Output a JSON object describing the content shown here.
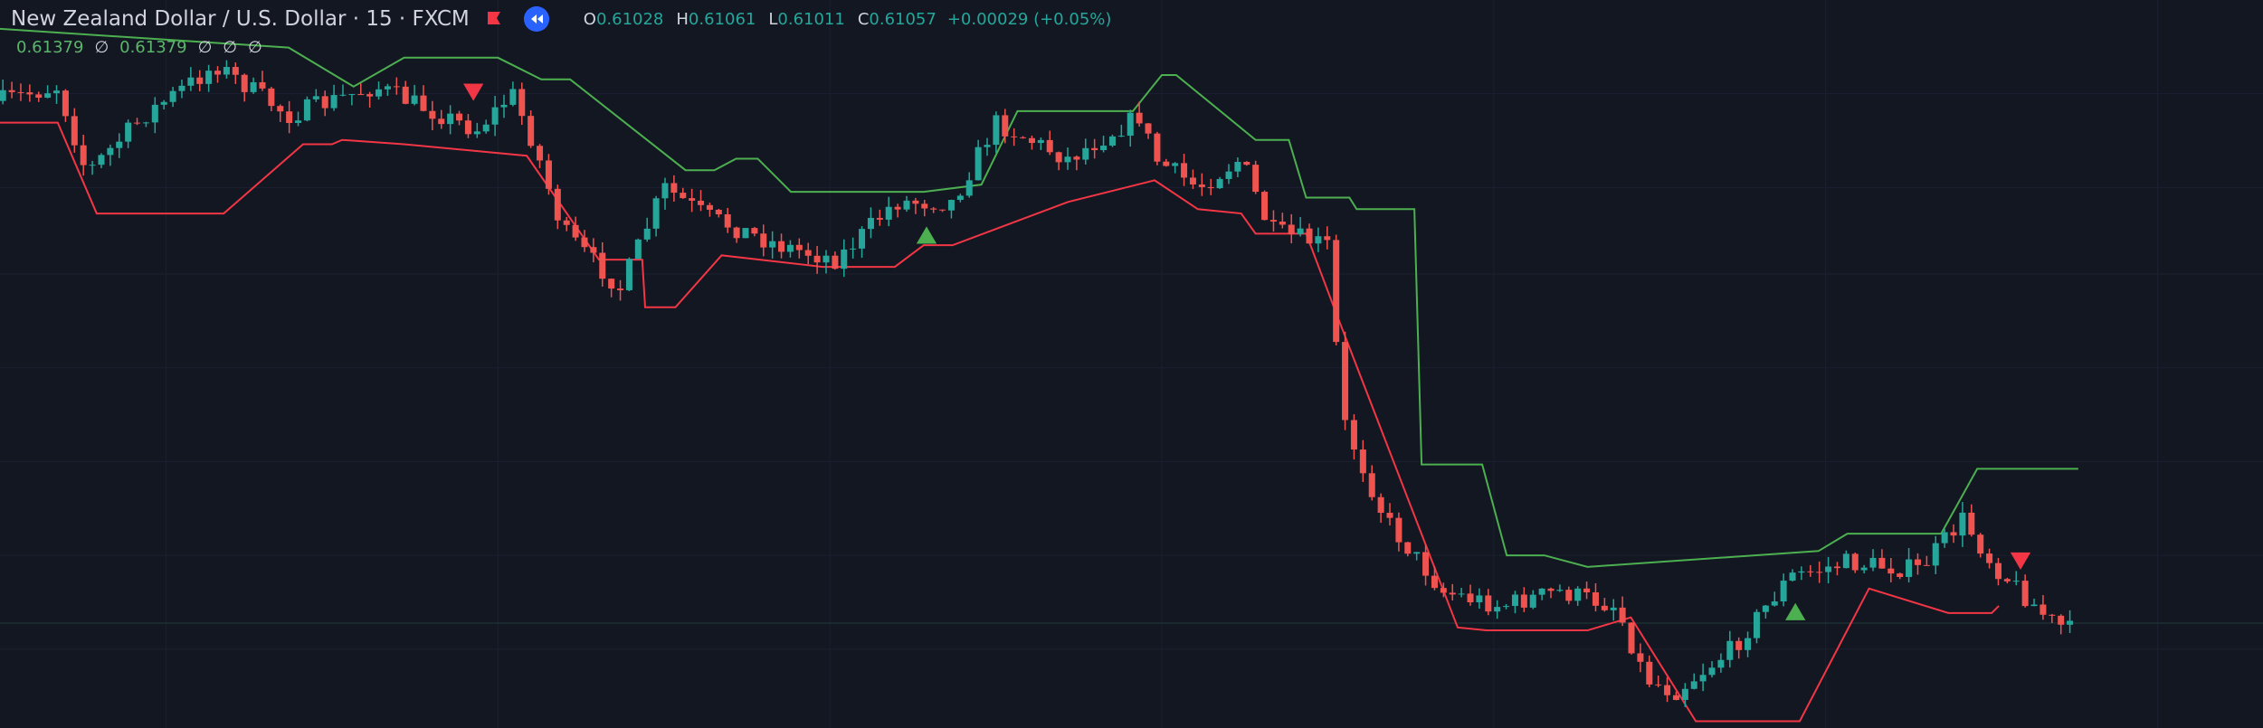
{
  "header": {
    "title": "New Zealand Dollar / U.S. Dollar · 15 · FXCM",
    "ohlc": [
      {
        "label": "O",
        "value": "0.61028"
      },
      {
        "label": "H",
        "value": "0.61061"
      },
      {
        "label": "L",
        "value": "0.61011"
      },
      {
        "label": "C",
        "value": "0.61057"
      }
    ],
    "change": "+0.00029 (+0.05%)"
  },
  "indicator": {
    "values": [
      "0.61379",
      "∅",
      "0.61379",
      "∅",
      "∅",
      "∅"
    ]
  }
}
